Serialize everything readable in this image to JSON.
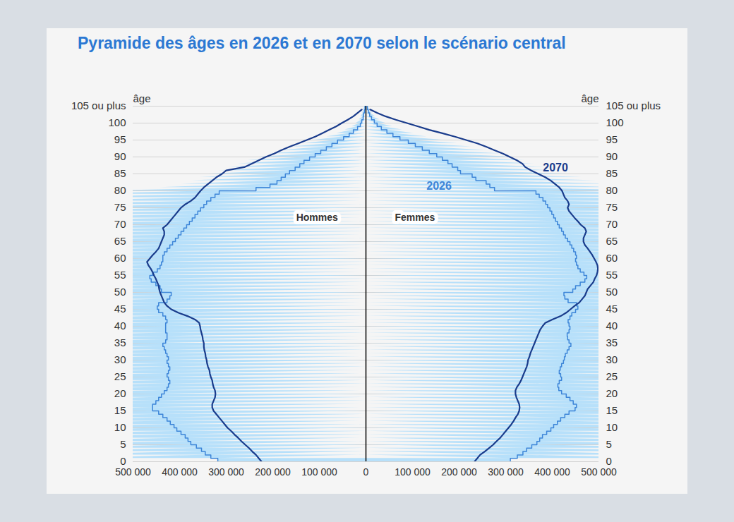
{
  "chart_data": {
    "type": "pyramid",
    "title": "Pyramide des âges en 2026 et en 2070 selon le scénario central",
    "y_label": "âge",
    "groups": [
      "Hommes",
      "Femmes"
    ],
    "xlim": [
      0,
      500000
    ],
    "xticks": [
      0,
      {
        "value": 100000,
        "label": "100 000"
      },
      {
        "value": 200000,
        "label": "200 000"
      },
      {
        "value": 300000,
        "label": "300 000"
      },
      {
        "value": 400000,
        "label": "400 000"
      },
      {
        "value": 500000,
        "label": "500 000"
      }
    ],
    "ylim": [
      0,
      105
    ],
    "yticks": [
      0,
      5,
      10,
      15,
      20,
      25,
      30,
      35,
      40,
      45,
      50,
      55,
      60,
      65,
      70,
      75,
      80,
      85,
      90,
      95,
      100,
      {
        "value": 105,
        "label": "105 ou plus"
      }
    ],
    "grid": true,
    "ages": [
      0,
      1,
      2,
      3,
      4,
      5,
      6,
      7,
      8,
      9,
      10,
      11,
      12,
      13,
      14,
      15,
      16,
      17,
      18,
      19,
      20,
      21,
      22,
      23,
      24,
      25,
      26,
      27,
      28,
      29,
      30,
      31,
      32,
      33,
      34,
      35,
      36,
      37,
      38,
      39,
      40,
      41,
      42,
      43,
      44,
      45,
      46,
      47,
      48,
      49,
      50,
      51,
      52,
      53,
      54,
      55,
      56,
      57,
      58,
      59,
      60,
      61,
      62,
      63,
      64,
      65,
      66,
      67,
      68,
      69,
      70,
      71,
      72,
      73,
      74,
      75,
      76,
      77,
      78,
      79,
      80,
      81,
      82,
      83,
      84,
      85,
      86,
      87,
      88,
      89,
      90,
      91,
      92,
      93,
      94,
      95,
      96,
      97,
      98,
      99,
      100,
      101,
      102,
      103,
      104
    ],
    "series": [
      {
        "name": "2026",
        "type": "area",
        "color": "#3d85d8",
        "values": [
          [
            318000,
            333000,
            345000,
            353000,
            364000,
            376000,
            382000,
            388000,
            397000,
            406000,
            412000,
            420000,
            427000,
            436000,
            445000,
            458000,
            458000,
            451000,
            445000,
            439000,
            433000,
            427000,
            424000,
            421000,
            424000,
            427000,
            424000,
            421000,
            424000,
            427000,
            424000,
            427000,
            430000,
            433000,
            436000,
            430000,
            427000,
            427000,
            430000,
            430000,
            430000,
            427000,
            430000,
            436000,
            445000,
            448000,
            445000,
            427000,
            421000,
            418000,
            439000,
            442000,
            451000,
            461000,
            464000,
            458000,
            448000,
            442000,
            439000,
            436000,
            436000,
            433000,
            427000,
            421000,
            415000,
            409000,
            403000,
            397000,
            391000,
            385000,
            379000,
            373000,
            367000,
            361000,
            355000,
            348000,
            342000,
            333000,
            324000,
            315000,
            236000,
            206000,
            191000,
            182000,
            173000,
            164000,
            152000,
            142000,
            133000,
            121000,
            109000,
            97000,
            85000,
            73000,
            61000,
            48000,
            36000,
            27000,
            18000,
            12000,
            9000,
            6000,
            5000,
            3000,
            2000
          ],
          [
            310000,
            325000,
            337000,
            345000,
            356000,
            367000,
            373000,
            379000,
            388000,
            397000,
            403000,
            411000,
            418000,
            427000,
            436000,
            449000,
            452000,
            445000,
            438000,
            430000,
            420000,
            414000,
            412000,
            415000,
            420000,
            418000,
            415000,
            417000,
            420000,
            424000,
            426000,
            428000,
            432000,
            436000,
            440000,
            436000,
            433000,
            432000,
            436000,
            438000,
            436000,
            434000,
            438000,
            442000,
            450000,
            455000,
            452000,
            434000,
            427000,
            425000,
            444000,
            450000,
            460000,
            470000,
            474000,
            468000,
            460000,
            455000,
            452000,
            450000,
            452000,
            450000,
            446000,
            442000,
            438000,
            433000,
            428000,
            424000,
            420000,
            415000,
            411000,
            407000,
            403000,
            399000,
            395000,
            390000,
            386000,
            380000,
            372000,
            365000,
            276000,
            266000,
            258000,
            236000,
            228000,
            203000,
            197000,
            185000,
            176000,
            164000,
            152000,
            136000,
            121000,
            106000,
            91000,
            73000,
            58000,
            45000,
            33000,
            24000,
            18000,
            12000,
            8000,
            5000,
            3000
          ]
        ]
      },
      {
        "name": "2070",
        "type": "line",
        "color": "#1a3c8c",
        "values": [
          [
            224000,
            230000,
            236000,
            244000,
            251000,
            259000,
            267000,
            274000,
            282000,
            289000,
            297000,
            303000,
            309000,
            315000,
            321000,
            327000,
            330000,
            330000,
            327000,
            324000,
            323000,
            324000,
            327000,
            329000,
            330000,
            333000,
            335000,
            336000,
            339000,
            341000,
            342000,
            344000,
            345000,
            347000,
            348000,
            348000,
            350000,
            351000,
            353000,
            355000,
            356000,
            358000,
            367000,
            383000,
            403000,
            418000,
            427000,
            433000,
            436000,
            439000,
            442000,
            444000,
            445000,
            448000,
            451000,
            455000,
            458000,
            462000,
            467000,
            470000,
            464000,
            458000,
            451000,
            445000,
            442000,
            439000,
            436000,
            433000,
            433000,
            436000,
            427000,
            421000,
            415000,
            409000,
            403000,
            397000,
            388000,
            376000,
            367000,
            361000,
            355000,
            348000,
            339000,
            330000,
            321000,
            309000,
            300000,
            261000,
            245000,
            230000,
            215000,
            197000,
            182000,
            164000,
            145000,
            127000,
            109000,
            94000,
            79000,
            64000,
            52000,
            39000,
            27000,
            18000,
            9000
          ],
          [
            233000,
            239000,
            245000,
            255000,
            264000,
            273000,
            280000,
            288000,
            294000,
            300000,
            306000,
            312000,
            317000,
            321000,
            326000,
            329000,
            330000,
            329000,
            326000,
            323000,
            321000,
            321000,
            324000,
            329000,
            333000,
            336000,
            339000,
            342000,
            345000,
            347000,
            348000,
            351000,
            353000,
            356000,
            359000,
            362000,
            365000,
            368000,
            371000,
            374000,
            379000,
            385000,
            400000,
            418000,
            430000,
            439000,
            448000,
            458000,
            464000,
            470000,
            473000,
            476000,
            482000,
            488000,
            491000,
            495000,
            497000,
            498000,
            497000,
            494000,
            490000,
            486000,
            481000,
            476000,
            470000,
            467000,
            467000,
            470000,
            473000,
            470000,
            461000,
            455000,
            448000,
            442000,
            436000,
            433000,
            436000,
            433000,
            427000,
            424000,
            421000,
            415000,
            406000,
            397000,
            385000,
            370000,
            355000,
            342000,
            336000,
            324000,
            309000,
            294000,
            276000,
            258000,
            239000,
            215000,
            191000,
            164000,
            136000,
            112000,
            88000,
            64000,
            42000,
            24000,
            9000
          ]
        ]
      }
    ]
  }
}
